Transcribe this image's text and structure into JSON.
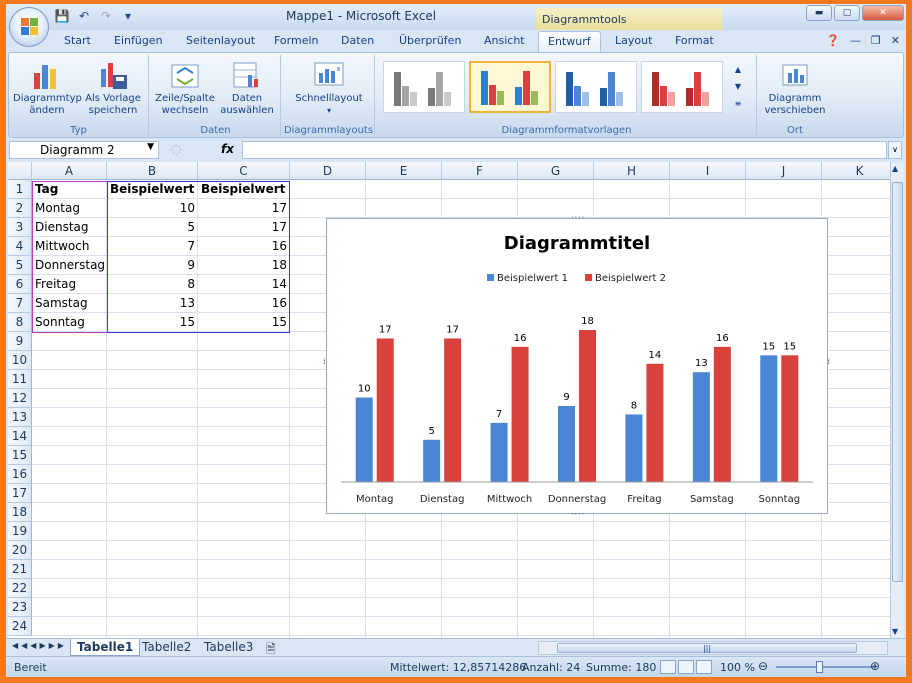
{
  "titlebar": {
    "document": "Mappe1 - Microsoft Excel",
    "context_tab": "Diagrammtools"
  },
  "qat_icons": [
    "save-icon",
    "undo-icon",
    "redo-icon",
    "customize-icon"
  ],
  "tabs": [
    {
      "label": "Start"
    },
    {
      "label": "Einfügen"
    },
    {
      "label": "Seitenlayout"
    },
    {
      "label": "Formeln"
    },
    {
      "label": "Daten"
    },
    {
      "label": "Überprüfen"
    },
    {
      "label": "Ansicht"
    },
    {
      "label": "Entwurf"
    },
    {
      "label": "Layout"
    },
    {
      "label": "Format"
    }
  ],
  "ribbon": {
    "typ": {
      "btn1": "Diagrammtyp ändern",
      "btn2": "Als Vorlage speichern",
      "label": "Typ"
    },
    "daten": {
      "btn1": "Zeile/Spalte wechseln",
      "btn2": "Daten auswählen",
      "label": "Daten"
    },
    "layouts": {
      "btn": "Schnelllayout",
      "label": "Diagrammlayouts"
    },
    "styles": {
      "label": "Diagrammformatvorlagen"
    },
    "ort": {
      "btn": "Diagramm verschieben",
      "label": "Ort"
    }
  },
  "formula_bar": {
    "name_box": "Diagramm 2",
    "fx": "fx",
    "value": ""
  },
  "columns": [
    "A",
    "B",
    "C",
    "D",
    "E",
    "F",
    "G",
    "H",
    "I",
    "J",
    "K"
  ],
  "rows": [
    "1",
    "2",
    "3",
    "4",
    "5",
    "6",
    "7",
    "8",
    "9",
    "10",
    "11",
    "12",
    "13",
    "14",
    "15",
    "16",
    "17",
    "18",
    "19",
    "20",
    "21",
    "22",
    "23",
    "24"
  ],
  "table": {
    "headers": [
      "Tag",
      "Beispielwert 1",
      "Beispielwert 2"
    ],
    "rows": [
      [
        "Montag",
        "10",
        "17"
      ],
      [
        "Dienstag",
        "5",
        "17"
      ],
      [
        "Mittwoch",
        "7",
        "16"
      ],
      [
        "Donnerstag",
        "9",
        "18"
      ],
      [
        "Freitag",
        "8",
        "14"
      ],
      [
        "Samstag",
        "13",
        "16"
      ],
      [
        "Sonntag",
        "15",
        "15"
      ]
    ]
  },
  "chart_data": {
    "type": "bar",
    "title": "Diagrammtitel",
    "categories": [
      "Montag",
      "Dienstag",
      "Mittwoch",
      "Donnerstag",
      "Freitag",
      "Samstag",
      "Sonntag"
    ],
    "series": [
      {
        "name": "Beispielwert 1",
        "values": [
          10,
          5,
          7,
          9,
          8,
          13,
          15
        ],
        "color": "#4a86d4"
      },
      {
        "name": "Beispielwert 2",
        "values": [
          17,
          17,
          16,
          18,
          14,
          16,
          15
        ],
        "color": "#d9413d"
      }
    ],
    "ylim": [
      0,
      18
    ],
    "legend_position": "top",
    "grid": false
  },
  "sheets": [
    "Tabelle1",
    "Tabelle2",
    "Tabelle3"
  ],
  "status": {
    "mode": "Bereit",
    "average": "Mittelwert: 12,85714286",
    "count": "Anzahl: 24",
    "sum": "Summe: 180",
    "zoom": "100 %"
  },
  "colors": {
    "accent": "#15428b",
    "frame": "#f5781e"
  }
}
